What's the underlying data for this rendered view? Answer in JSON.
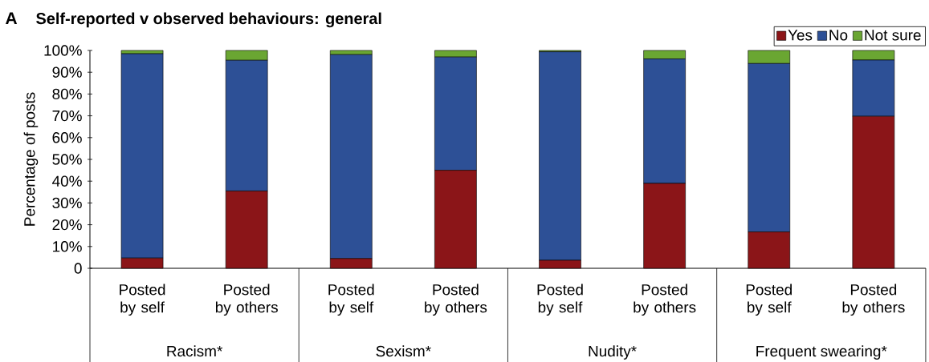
{
  "chart_data": {
    "type": "bar",
    "stacked": true,
    "title": "Self-reported v observed behaviours: general",
    "ylabel": "Percentage of posts",
    "annotations": [
      "A",
      "Racism*",
      "Sexism*",
      "Nudity*",
      "Frequent swearing*"
    ],
    "categories": [
      "Posted by self",
      "Posted by others",
      "Posted by self",
      "Posted by others",
      "Posted by self",
      "Posted by others",
      "Posted by self",
      "Posted by others"
    ],
    "series": [
      {
        "name": "Yes",
        "color": "#8b1518",
        "values": [
          4.7,
          35.5,
          4.5,
          45.0,
          3.7,
          39.0,
          16.7,
          69.8
        ]
      },
      {
        "name": "No",
        "color": "#2d5096",
        "values": [
          93.8,
          60.0,
          93.6,
          52.0,
          95.7,
          57.1,
          77.3,
          25.8
        ]
      },
      {
        "name": "Not sure",
        "color": "#6aa632",
        "values": [
          1.5,
          4.5,
          1.9,
          3.0,
          0.6,
          3.9,
          6.0,
          4.4
        ]
      }
    ],
    "ylim": [
      0,
      100
    ],
    "yticks": [
      0,
      {
        "value": 10,
        "label": "10%"
      },
      {
        "value": 20,
        "label": "20%"
      },
      {
        "value": 30,
        "label": "30%"
      },
      {
        "value": 40,
        "label": "40%"
      },
      {
        "value": 50,
        "label": "50%"
      },
      {
        "value": 60,
        "label": "60%"
      },
      {
        "value": 70,
        "label": "70%"
      },
      {
        "value": 80,
        "label": "80%"
      },
      {
        "value": 90,
        "label": "90%"
      },
      {
        "value": 100,
        "label": "100%"
      }
    ],
    "legend": "top right"
  }
}
